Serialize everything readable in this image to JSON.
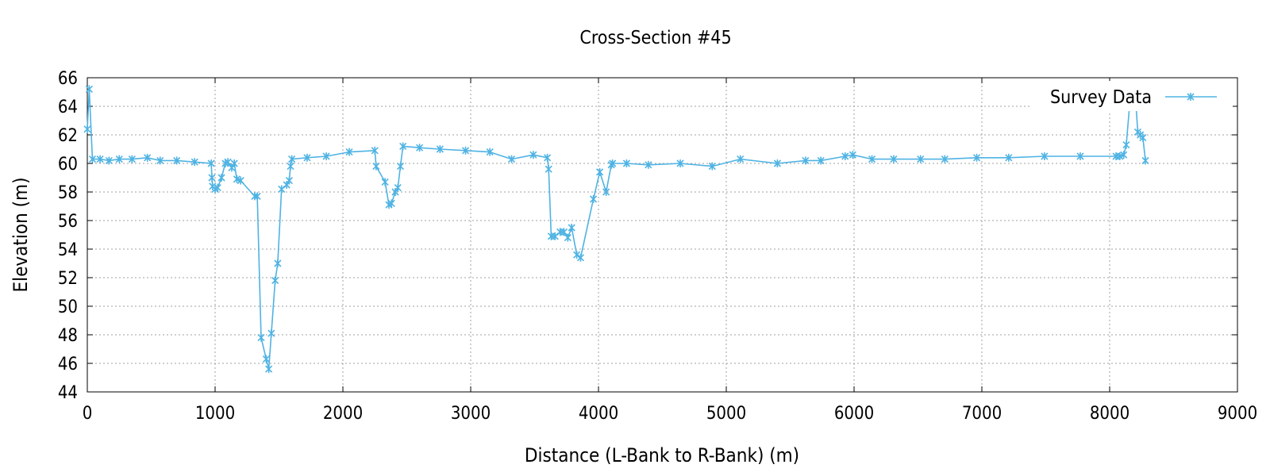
{
  "chart_data": {
    "type": "line",
    "title": "Cross-Section #45",
    "xlabel": "Distance (L-Bank to R-Bank) (m)",
    "ylabel": "Elevation (m)",
    "xlim": [
      0,
      9000
    ],
    "ylim": [
      44,
      66
    ],
    "xticks": [
      0,
      1000,
      2000,
      3000,
      4000,
      5000,
      6000,
      7000,
      8000,
      9000
    ],
    "yticks": [
      44,
      46,
      48,
      50,
      52,
      54,
      56,
      58,
      60,
      62,
      64,
      66
    ],
    "grid": true,
    "legend_position": "top-right",
    "series": [
      {
        "name": "Survey Data",
        "color": "#4fb3e3",
        "marker": "asterisk",
        "x": [
          0,
          15,
          40,
          100,
          170,
          250,
          350,
          470,
          570,
          700,
          840,
          970,
          975,
          980,
          1000,
          1020,
          1050,
          1080,
          1100,
          1130,
          1150,
          1170,
          1200,
          1310,
          1330,
          1360,
          1400,
          1420,
          1440,
          1470,
          1490,
          1520,
          1560,
          1580,
          1590,
          1600,
          1720,
          1870,
          2050,
          2250,
          2260,
          2330,
          2360,
          2380,
          2410,
          2430,
          2450,
          2470,
          2600,
          2760,
          2960,
          3150,
          3320,
          3490,
          3600,
          3610,
          3630,
          3660,
          3700,
          3730,
          3760,
          3790,
          3830,
          3860,
          3960,
          4010,
          4060,
          4100,
          4110,
          4220,
          4390,
          4640,
          4890,
          5110,
          5400,
          5620,
          5740,
          5930,
          5990,
          6140,
          6310,
          6520,
          6710,
          6960,
          7210,
          7490,
          7770,
          8050,
          8080,
          8110,
          8130,
          8160,
          8180,
          8200,
          8220,
          8240,
          8260,
          8280
        ],
        "y": [
          62.4,
          65.2,
          60.3,
          60.3,
          60.2,
          60.3,
          60.3,
          60.4,
          60.2,
          60.2,
          60.1,
          60.0,
          59.0,
          58.4,
          58.2,
          58.3,
          59.0,
          60.0,
          60.1,
          59.7,
          60.0,
          58.9,
          58.8,
          57.7,
          57.7,
          47.8,
          46.3,
          45.6,
          48.1,
          51.8,
          53.0,
          58.2,
          58.5,
          58.8,
          59.8,
          60.3,
          60.4,
          60.5,
          60.8,
          60.9,
          59.8,
          58.7,
          57.1,
          57.2,
          58.0,
          58.3,
          59.8,
          61.2,
          61.1,
          61.0,
          60.9,
          60.8,
          60.3,
          60.6,
          60.4,
          59.6,
          54.9,
          54.9,
          55.2,
          55.2,
          54.8,
          55.5,
          53.6,
          53.4,
          57.5,
          59.4,
          58.0,
          59.9,
          60.0,
          60.0,
          59.9,
          60.0,
          59.8,
          60.3,
          60.0,
          60.2,
          60.2,
          60.5,
          60.6,
          60.3,
          60.3,
          60.3,
          60.3,
          60.4,
          60.4,
          60.5,
          60.5,
          60.5,
          60.5,
          60.6,
          61.3,
          64.5,
          65.0,
          64.9,
          62.2,
          62.0,
          61.8,
          60.2
        ]
      }
    ]
  }
}
